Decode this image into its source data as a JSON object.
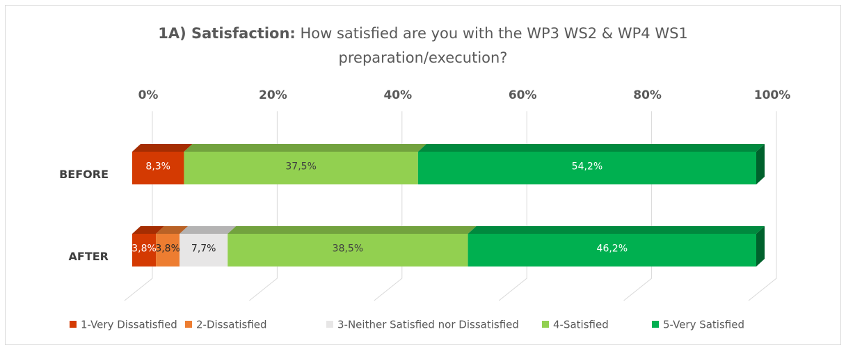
{
  "chart_data": {
    "type": "bar",
    "orientation": "horizontal",
    "stacked": true,
    "title": {
      "lead": "1A) Satisfaction:",
      "lines": [
        "How satisfied are you with the WP3 WS2 & WP4 WS1",
        "preparation/execution?"
      ]
    },
    "categories": [
      "BEFORE",
      "AFTER"
    ],
    "series": [
      {
        "name": "1-Very Dissatisfied",
        "color": "#d43a02",
        "label_color": "#ffffff",
        "values": [
          8.3,
          3.8
        ],
        "value_labels": [
          "8,3%",
          "3,8%"
        ]
      },
      {
        "name": "2-Dissatisfied",
        "color": "#ed7d31",
        "label_color": "#262626",
        "values": [
          null,
          3.8
        ],
        "value_labels": [
          null,
          "3,8%"
        ]
      },
      {
        "name": "3-Neither Satisfied nor Dissatisfied",
        "color": "#e7e6e6",
        "label_color": "#262626",
        "values": [
          null,
          7.7
        ],
        "value_labels": [
          null,
          "7,7%"
        ]
      },
      {
        "name": "4-Satisfied",
        "color": "#92d050",
        "label_color": "#404040",
        "values": [
          37.5,
          38.5
        ],
        "value_labels": [
          "37,5%",
          "38,5%"
        ]
      },
      {
        "name": "5-Very Satisfied",
        "color": "#00b050",
        "label_color": "#ffffff",
        "values": [
          54.2,
          46.2
        ],
        "value_labels": [
          "54,2%",
          "46,2%"
        ]
      }
    ],
    "xlim": [
      0,
      100
    ],
    "xticks": [
      {
        "value": 0,
        "label": "0%"
      },
      {
        "value": 20,
        "label": "20%"
      },
      {
        "value": 40,
        "label": "40%"
      },
      {
        "value": 60,
        "label": "60%"
      },
      {
        "value": 80,
        "label": "80%"
      },
      {
        "value": 100,
        "label": "100%"
      }
    ],
    "grid": true,
    "legend": "bottom"
  }
}
